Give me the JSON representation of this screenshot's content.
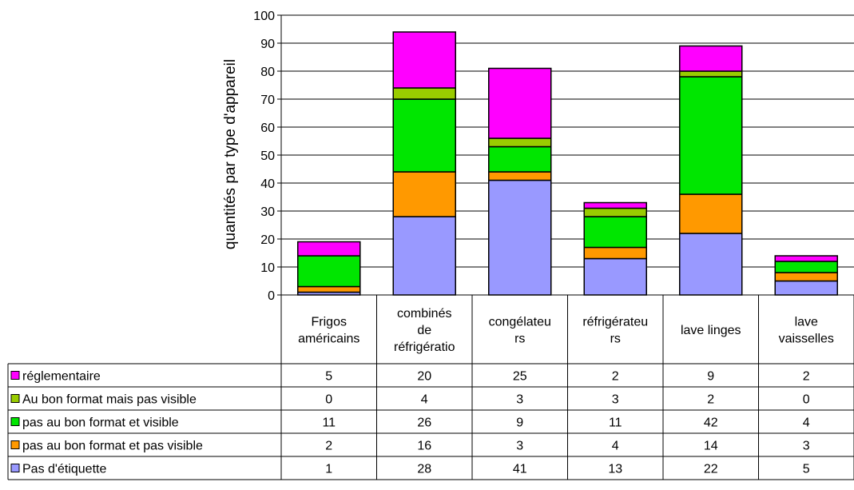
{
  "chart_data": {
    "type": "bar",
    "stacked": true,
    "ylabel": "quantités par type d'appareil",
    "xlabel": "",
    "ylim": [
      0,
      100
    ],
    "yticks": [
      0,
      10,
      20,
      30,
      40,
      50,
      60,
      70,
      80,
      90,
      100
    ],
    "grid": true,
    "legend": "data-table-left",
    "categories": [
      [
        "Frigos",
        "américains"
      ],
      [
        "combinés",
        "de",
        "réfrigératio"
      ],
      [
        "congélateu",
        "rs"
      ],
      [
        "réfrigérateu",
        "rs"
      ],
      [
        "lave linges"
      ],
      [
        "lave",
        "vaisselles"
      ]
    ],
    "series": [
      {
        "name": "Pas d'étiquette",
        "color": "#9999FF",
        "values": [
          1,
          28,
          41,
          13,
          22,
          5
        ]
      },
      {
        "name": "pas au bon format et pas visible",
        "color": "#FF9900",
        "values": [
          2,
          16,
          3,
          4,
          14,
          3
        ]
      },
      {
        "name": "pas au bon format et visible",
        "color": "#00E600",
        "values": [
          11,
          26,
          9,
          11,
          42,
          4
        ]
      },
      {
        "name": "Au bon format mais pas visible",
        "color": "#99CC00",
        "values": [
          0,
          4,
          3,
          3,
          2,
          0
        ]
      },
      {
        "name": "réglementaire",
        "color": "#FF00FF",
        "values": [
          5,
          20,
          25,
          2,
          9,
          2
        ]
      }
    ]
  }
}
